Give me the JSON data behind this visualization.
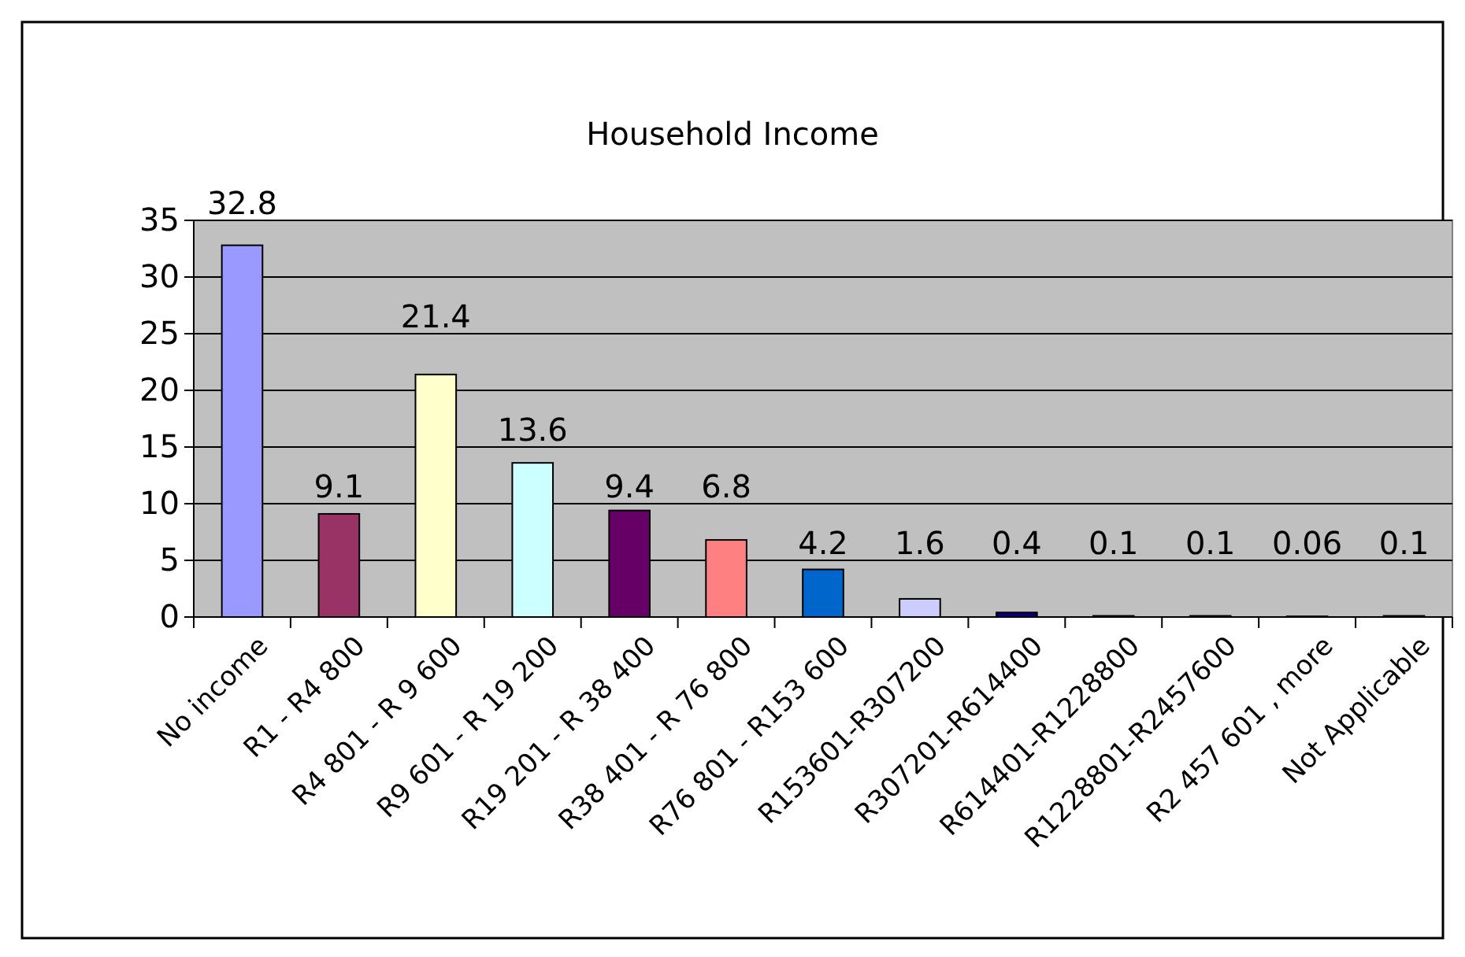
{
  "chart_data": {
    "type": "bar",
    "title": "Household Income",
    "categories": [
      "No income",
      "R1 - R4 800",
      "R4 801 - R 9 600",
      "R9 601 - R 19 200",
      "R19 201 - R 38 400",
      "R38 401 - R 76 800",
      "R76 801 - R153 600",
      "R153601-R307200",
      "R307201-R614400",
      "R614401-R1228800",
      "R1228801-R2457600",
      "R2 457 601 , more",
      "Not Applicable"
    ],
    "values": [
      32.8,
      9.1,
      21.4,
      13.6,
      9.4,
      6.8,
      4.2,
      1.6,
      0.4,
      0.1,
      0.1,
      0.06,
      0.1
    ],
    "colors": [
      "#9999ff",
      "#993366",
      "#ffffcc",
      "#ccffff",
      "#660066",
      "#ff8080",
      "#0066cc",
      "#ccccff",
      "#000080",
      "#ff00ff",
      "#ffff00",
      "#00ffff",
      "#800080"
    ],
    "ylim": [
      0,
      35
    ],
    "yticks": [
      0,
      5,
      10,
      15,
      20,
      25,
      30,
      35
    ],
    "grid": "y",
    "data_labels": true
  }
}
